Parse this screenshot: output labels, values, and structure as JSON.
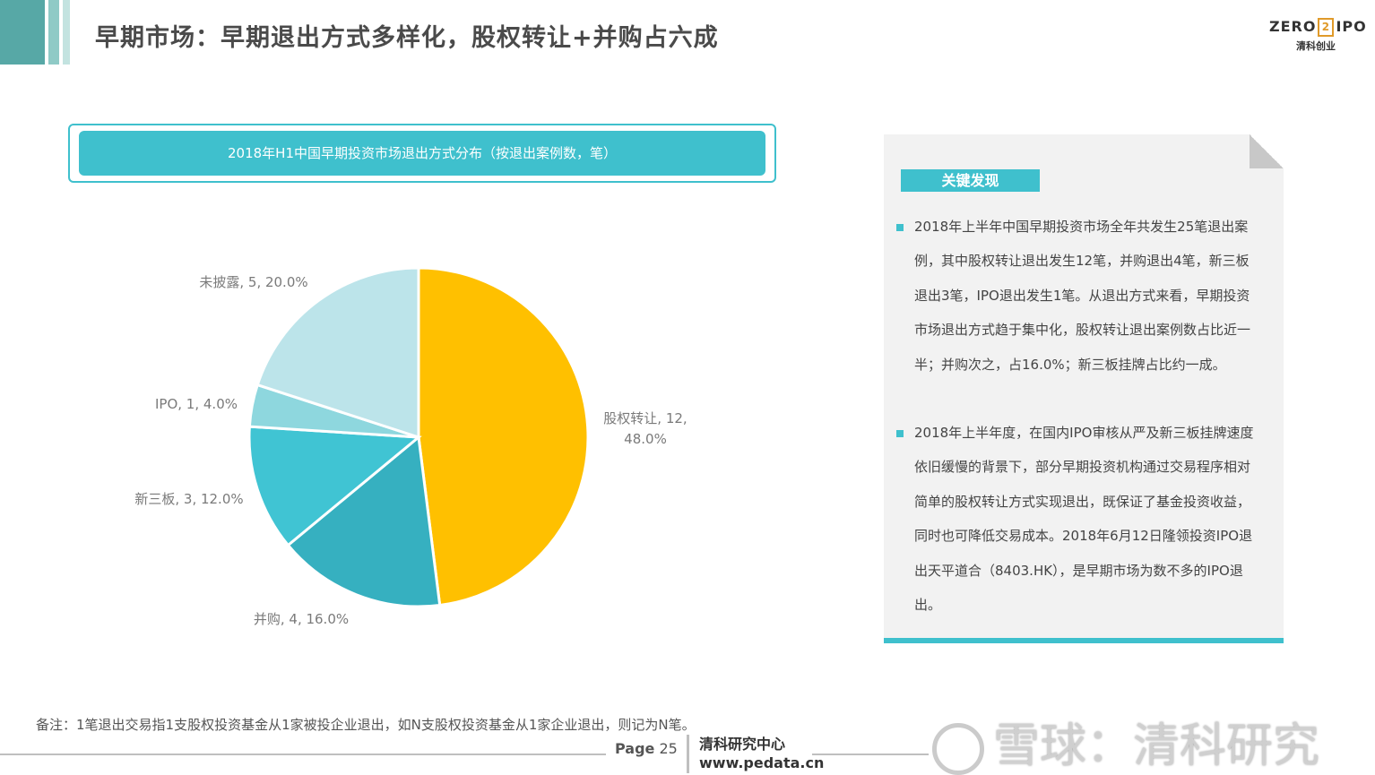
{
  "page": {
    "title": "早期市场：早期退出方式多样化，股权转让+并购占六成"
  },
  "logo": {
    "left": "ZERO",
    "box": "2",
    "right": "IPO",
    "sub": "清科创业"
  },
  "chart_title": "2018年H1中国早期投资市场退出方式分布（按退出案例数，笔）",
  "chart_data": {
    "type": "pie",
    "title": "2018年H1中国早期投资市场退出方式分布（按退出案例数，笔）",
    "slices": [
      {
        "name": "股权转让",
        "value": 12,
        "percent": 48.0,
        "color": "#ffc000"
      },
      {
        "name": "并购",
        "value": 4,
        "percent": 16.0,
        "color": "#36b0c0"
      },
      {
        "name": "新三板",
        "value": 3,
        "percent": 12.0,
        "color": "#40c4d3"
      },
      {
        "name": "IPO",
        "value": 1,
        "percent": 4.0,
        "color": "#8ed7de"
      },
      {
        "name": "未披露",
        "value": 5,
        "percent": 20.0,
        "color": "#bce4ea"
      }
    ],
    "labels": [
      {
        "lines": [
          "股权转让, 12,",
          "48.0%"
        ]
      },
      {
        "lines": [
          "并购, 4, 16.0%"
        ]
      },
      {
        "lines": [
          "新三板, 3, 12.0%"
        ]
      },
      {
        "lines": [
          "IPO, 1, 4.0%"
        ]
      },
      {
        "lines": [
          "未披露, 5, 20.0%"
        ]
      }
    ]
  },
  "panel": {
    "header": "关键发现",
    "bullets": [
      "2018年上半年中国早期投资市场全年共发生25笔退出案例，其中股权转让退出发生12笔，并购退出4笔，新三板退出3笔，IPO退出发生1笔。从退出方式来看，早期投资市场退出方式趋于集中化，股权转让退出案例数占比近一半；并购次之，占16.0%；新三板挂牌占比约一成。",
      "2018年上半年度，在国内IPO审核从严及新三板挂牌速度依旧缓慢的背景下，部分早期投资机构通过交易程序相对简单的股权转让方式实现退出，既保证了基金投资收益，同时也可降低交易成本。2018年6月12日隆领投资IPO退出天平道合（8403.HK），是早期市场为数不多的IPO退出。"
    ]
  },
  "footnote": "备注：1笔退出交易指1支股权投资基金从1家被投企业退出，如N支股权投资基金从1家企业退出，则记为N笔。",
  "footer": {
    "page_label": "Page",
    "page_number": "25",
    "org_name": "清科研究中心",
    "org_url": "www.pedata.cn"
  },
  "watermark": "雪球：清科研究"
}
